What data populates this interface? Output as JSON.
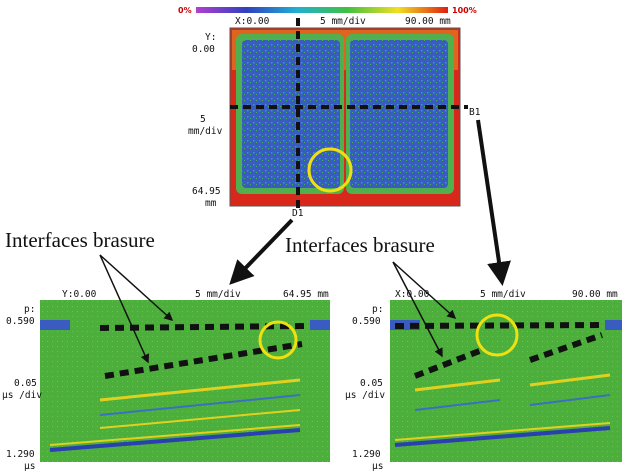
{
  "colorbar": {
    "min_label": "0%",
    "max_label": "100%"
  },
  "cscan": {
    "x_start": "X:0.00",
    "x_scale": "5 mm/div",
    "x_end": "90.00 mm",
    "y_name": "Y:",
    "y_start": "0.00",
    "y_scale_value": "5",
    "y_scale_unit": "mm/div",
    "y_end": "64.95",
    "y_end_unit": "mm",
    "cut_b": "B1",
    "cut_d": "D1"
  },
  "annotations": [
    "Interfaces brasure",
    "Interfaces brasure"
  ],
  "bscans": [
    {
      "h_start": "Y:0.00",
      "h_scale": "5 mm/div",
      "h_end": "64.95 mm",
      "p_name": "p:",
      "p_start": "0.590",
      "t_scale_value": "0.05",
      "t_scale_unit": "µs /div",
      "t_end": "1.290",
      "t_end_unit": "µs"
    },
    {
      "h_start": "X:0.00",
      "h_scale": "5 mm/div",
      "h_end": "90.00 mm",
      "p_name": "p:",
      "p_start": "0.590",
      "t_scale_value": "0.05",
      "t_scale_unit": "µs /div",
      "t_end": "1.290",
      "t_end_unit": "µs"
    }
  ]
}
